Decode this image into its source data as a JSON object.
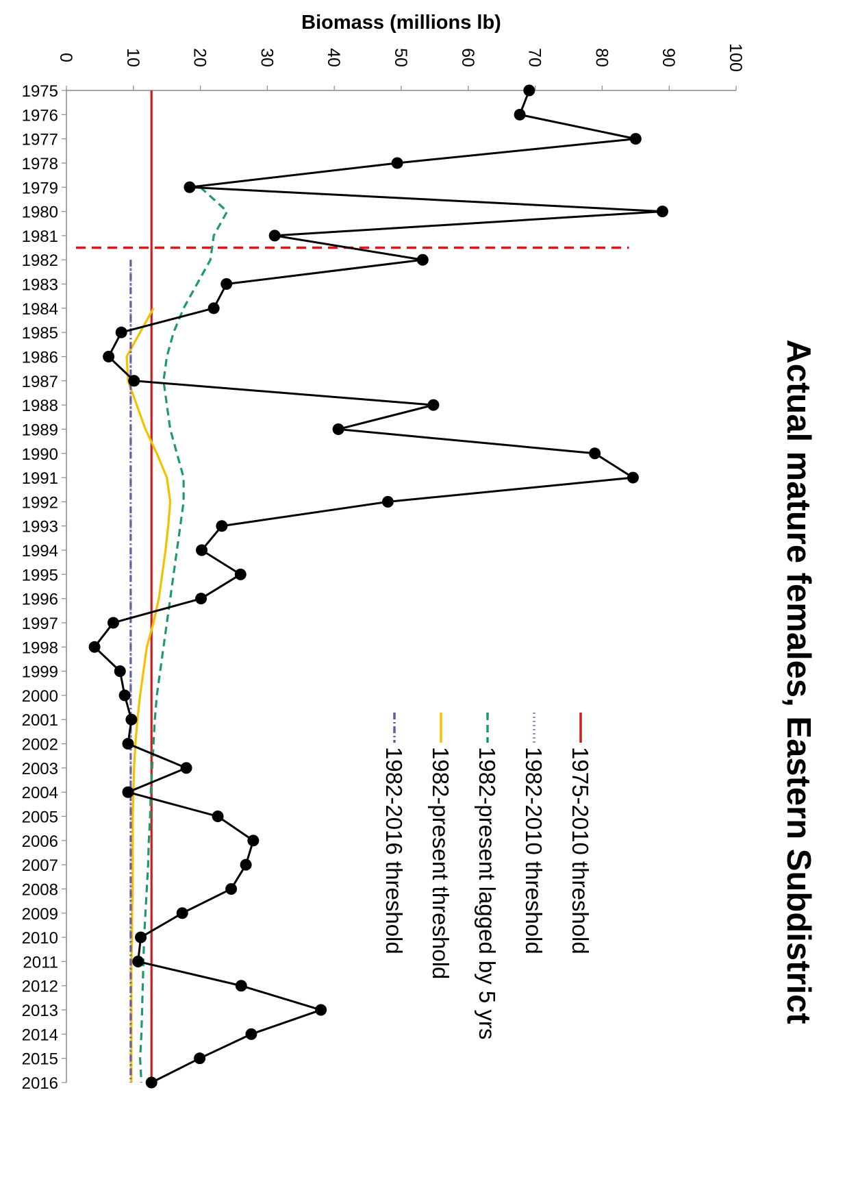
{
  "chart_data": {
    "type": "line",
    "title": "Actual mature females, Eastern Subdistrict",
    "xlabel": "",
    "ylabel": "Biomass (millions lb)",
    "x_range": [
      1975,
      2016
    ],
    "ylim": [
      0,
      100
    ],
    "y_ticks": [
      0,
      10,
      20,
      30,
      40,
      50,
      60,
      70,
      80,
      90,
      100
    ],
    "grid": false,
    "orientation": "rotated 90 degrees clockwise (years run top to bottom, biomass increases to the right)",
    "legend_position": "center",
    "x": [
      1975,
      1976,
      1977,
      1978,
      1979,
      1980,
      1981,
      1982,
      1983,
      1984,
      1985,
      1986,
      1987,
      1988,
      1989,
      1990,
      1991,
      1992,
      1993,
      1994,
      1995,
      1996,
      1997,
      1998,
      1999,
      2000,
      2001,
      2002,
      2003,
      2004,
      2005,
      2006,
      2007,
      2008,
      2009,
      2010,
      2011,
      2012,
      2013,
      2014,
      2015,
      2016
    ],
    "series": [
      {
        "name": "",
        "style": "black line with circle markers",
        "color": "#000000",
        "x": [
          1975,
          1976,
          1977,
          1978,
          1979,
          1980,
          1981,
          1982,
          1983,
          1984,
          1985,
          1986,
          1987,
          1988,
          1989,
          1990,
          1991,
          1992,
          1993,
          1994,
          1995,
          1996,
          1997,
          1998,
          1999,
          2000,
          2001,
          2002,
          2003,
          2004,
          2005,
          2006,
          2007,
          2008,
          2009,
          2010,
          2011,
          2012,
          2013,
          2014,
          2015,
          2016
        ],
        "values": [
          69.1,
          67.7,
          85.0,
          49.4,
          18.4,
          89.0,
          31.1,
          53.2,
          23.9,
          22.0,
          8.2,
          6.3,
          10.1,
          54.8,
          40.6,
          78.9,
          84.6,
          48.0,
          23.2,
          20.2,
          26.0,
          20.1,
          7.0,
          4.2,
          8.0,
          8.7,
          9.7,
          9.2,
          17.9,
          9.2,
          22.6,
          27.9,
          26.8,
          24.6,
          17.3,
          11.1,
          10.7,
          26.1,
          38.0,
          27.6,
          19.9,
          12.7
        ]
      },
      {
        "name": "1975-2010 threshold",
        "style": "solid",
        "color": "#d01c1c",
        "x": [
          1975,
          2016
        ],
        "values": [
          12.7,
          12.7
        ]
      },
      {
        "name": "1982-2010 threshold",
        "style": "dotted",
        "color": "#8a86c0",
        "x": [
          1982,
          2016
        ],
        "values": [
          9.6,
          9.6
        ]
      },
      {
        "name": "1982-present lagged by 5 yrs",
        "style": "dashed",
        "color": "#1e9a6a",
        "x": [
          1979,
          1980,
          1981,
          1982,
          1983,
          1984,
          1985,
          1986,
          1987,
          1988,
          1989,
          1990,
          1991,
          1992,
          1993,
          1994,
          1995,
          1996,
          1997,
          1998,
          1999,
          2000,
          2001,
          2002,
          2003,
          2004,
          2005,
          2006,
          2007,
          2008,
          2009,
          2010,
          2011,
          2012,
          2013,
          2014,
          2015,
          2016
        ],
        "values": [
          20.0,
          24.0,
          22.0,
          21.5,
          19.5,
          17.5,
          16.0,
          15.0,
          14.5,
          15.0,
          15.5,
          16.5,
          17.5,
          17.5,
          17.0,
          16.5,
          16.0,
          15.5,
          15.0,
          14.5,
          14.0,
          13.5,
          13.2,
          13.0,
          12.8,
          12.6,
          12.5,
          12.3,
          12.2,
          12.0,
          11.8,
          11.6,
          11.5,
          11.4,
          11.3,
          11.2,
          11.0,
          11.2
        ]
      },
      {
        "name": "1982-present threshold",
        "style": "solid",
        "color": "#f5c000",
        "x": [
          1984,
          1985,
          1986,
          1987,
          1988,
          1989,
          1990,
          1991,
          1992,
          1993,
          1994,
          1995,
          1996,
          1997,
          1998,
          1999,
          2000,
          2001,
          2002,
          2003,
          2004,
          2005,
          2006,
          2007,
          2008,
          2009,
          2010,
          2011,
          2012,
          2013,
          2014,
          2015,
          2016
        ],
        "values": [
          13.0,
          11.0,
          9.0,
          9.2,
          10.5,
          11.8,
          13.5,
          15.0,
          15.5,
          15.2,
          14.8,
          14.3,
          13.8,
          13.0,
          12.0,
          11.5,
          11.0,
          10.6,
          10.3,
          10.1,
          10.0,
          9.9,
          9.9,
          9.9,
          9.9,
          9.8,
          9.8,
          9.7,
          9.7,
          9.7,
          9.7,
          9.7,
          9.7
        ]
      },
      {
        "name": "1982-2016 threshold",
        "style": "dash-dot",
        "color": "#6a5aa8",
        "x": [
          1982,
          2016
        ],
        "values": [
          9.6,
          9.6
        ]
      }
    ],
    "annotations": [
      {
        "type": "vertical-dashed-line",
        "color": "#d01c1c",
        "x": 1981.5,
        "y_range": [
          0,
          84
        ]
      }
    ]
  }
}
